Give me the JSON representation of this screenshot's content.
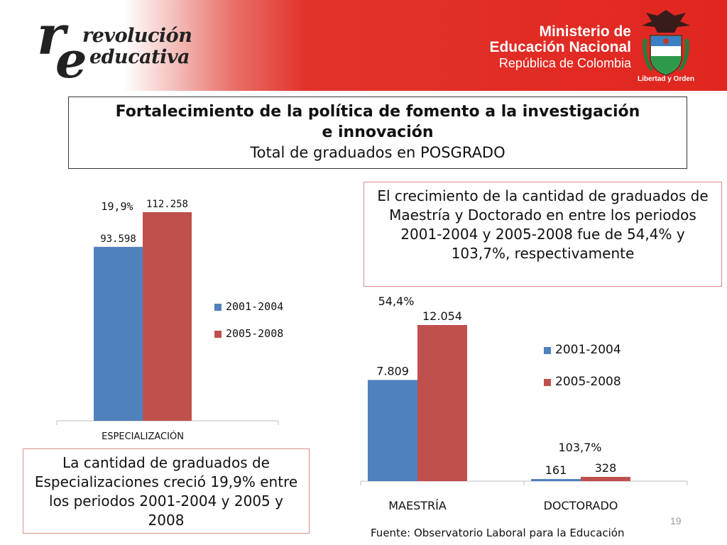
{
  "header": {
    "logo_text_line1": "revolución",
    "logo_text_line2": "educativa",
    "logo_letter_r": "r",
    "logo_letter_e": "e",
    "ministry_line1": "Ministerio de",
    "ministry_line2": "Educación Nacional",
    "ministry_line3": "República de Colombia",
    "motto": "Libertad y Orden",
    "colors": {
      "banner_red": "#e0261f"
    }
  },
  "title": {
    "line1": "Fortalecimiento de la política de fomento a la investigación",
    "line2": "e innovación",
    "subtitle": "Total de graduados en POSGRADO"
  },
  "callouts": {
    "right": "El crecimiento de la cantidad de graduados de Maestría y Doctorado en entre los periodos 2001-2004 y 2005-2008 fue de 54,4% y 103,7%, respectivamente",
    "left": "La cantidad de graduados de Especializaciones creció 19,9% entre los periodos 2001-2004 y 2005 y 2008"
  },
  "chart_data": [
    {
      "type": "bar",
      "categories": [
        "ESPECIALIZACIÓN"
      ],
      "series": [
        {
          "name": "2001-2004",
          "values": [
            93598
          ],
          "labels": [
            "93.598"
          ],
          "color": "#4f81bd"
        },
        {
          "name": "2005-2008",
          "values": [
            112258
          ],
          "labels": [
            "112.258"
          ],
          "color": "#c0504d"
        }
      ],
      "growth_labels": [
        "19,9%"
      ],
      "ylim": [
        0,
        112258
      ],
      "legend": "right",
      "grid": false
    },
    {
      "type": "bar",
      "categories": [
        "MAESTRÍA",
        "DOCTORADO"
      ],
      "series": [
        {
          "name": "2001-2004",
          "values": [
            7809,
            161
          ],
          "labels": [
            "7.809",
            "161"
          ],
          "color": "#4f81bd"
        },
        {
          "name": "2005-2008",
          "values": [
            12054,
            328
          ],
          "labels": [
            "12.054",
            "328"
          ],
          "color": "#c0504d"
        }
      ],
      "growth_labels": [
        "54,4%",
        "103,7%"
      ],
      "ylim": [
        0,
        12054
      ],
      "legend": "right",
      "grid": false
    }
  ],
  "footer": {
    "source": "Fuente: Observatorio Laboral para la Educación",
    "page_number": "19"
  }
}
